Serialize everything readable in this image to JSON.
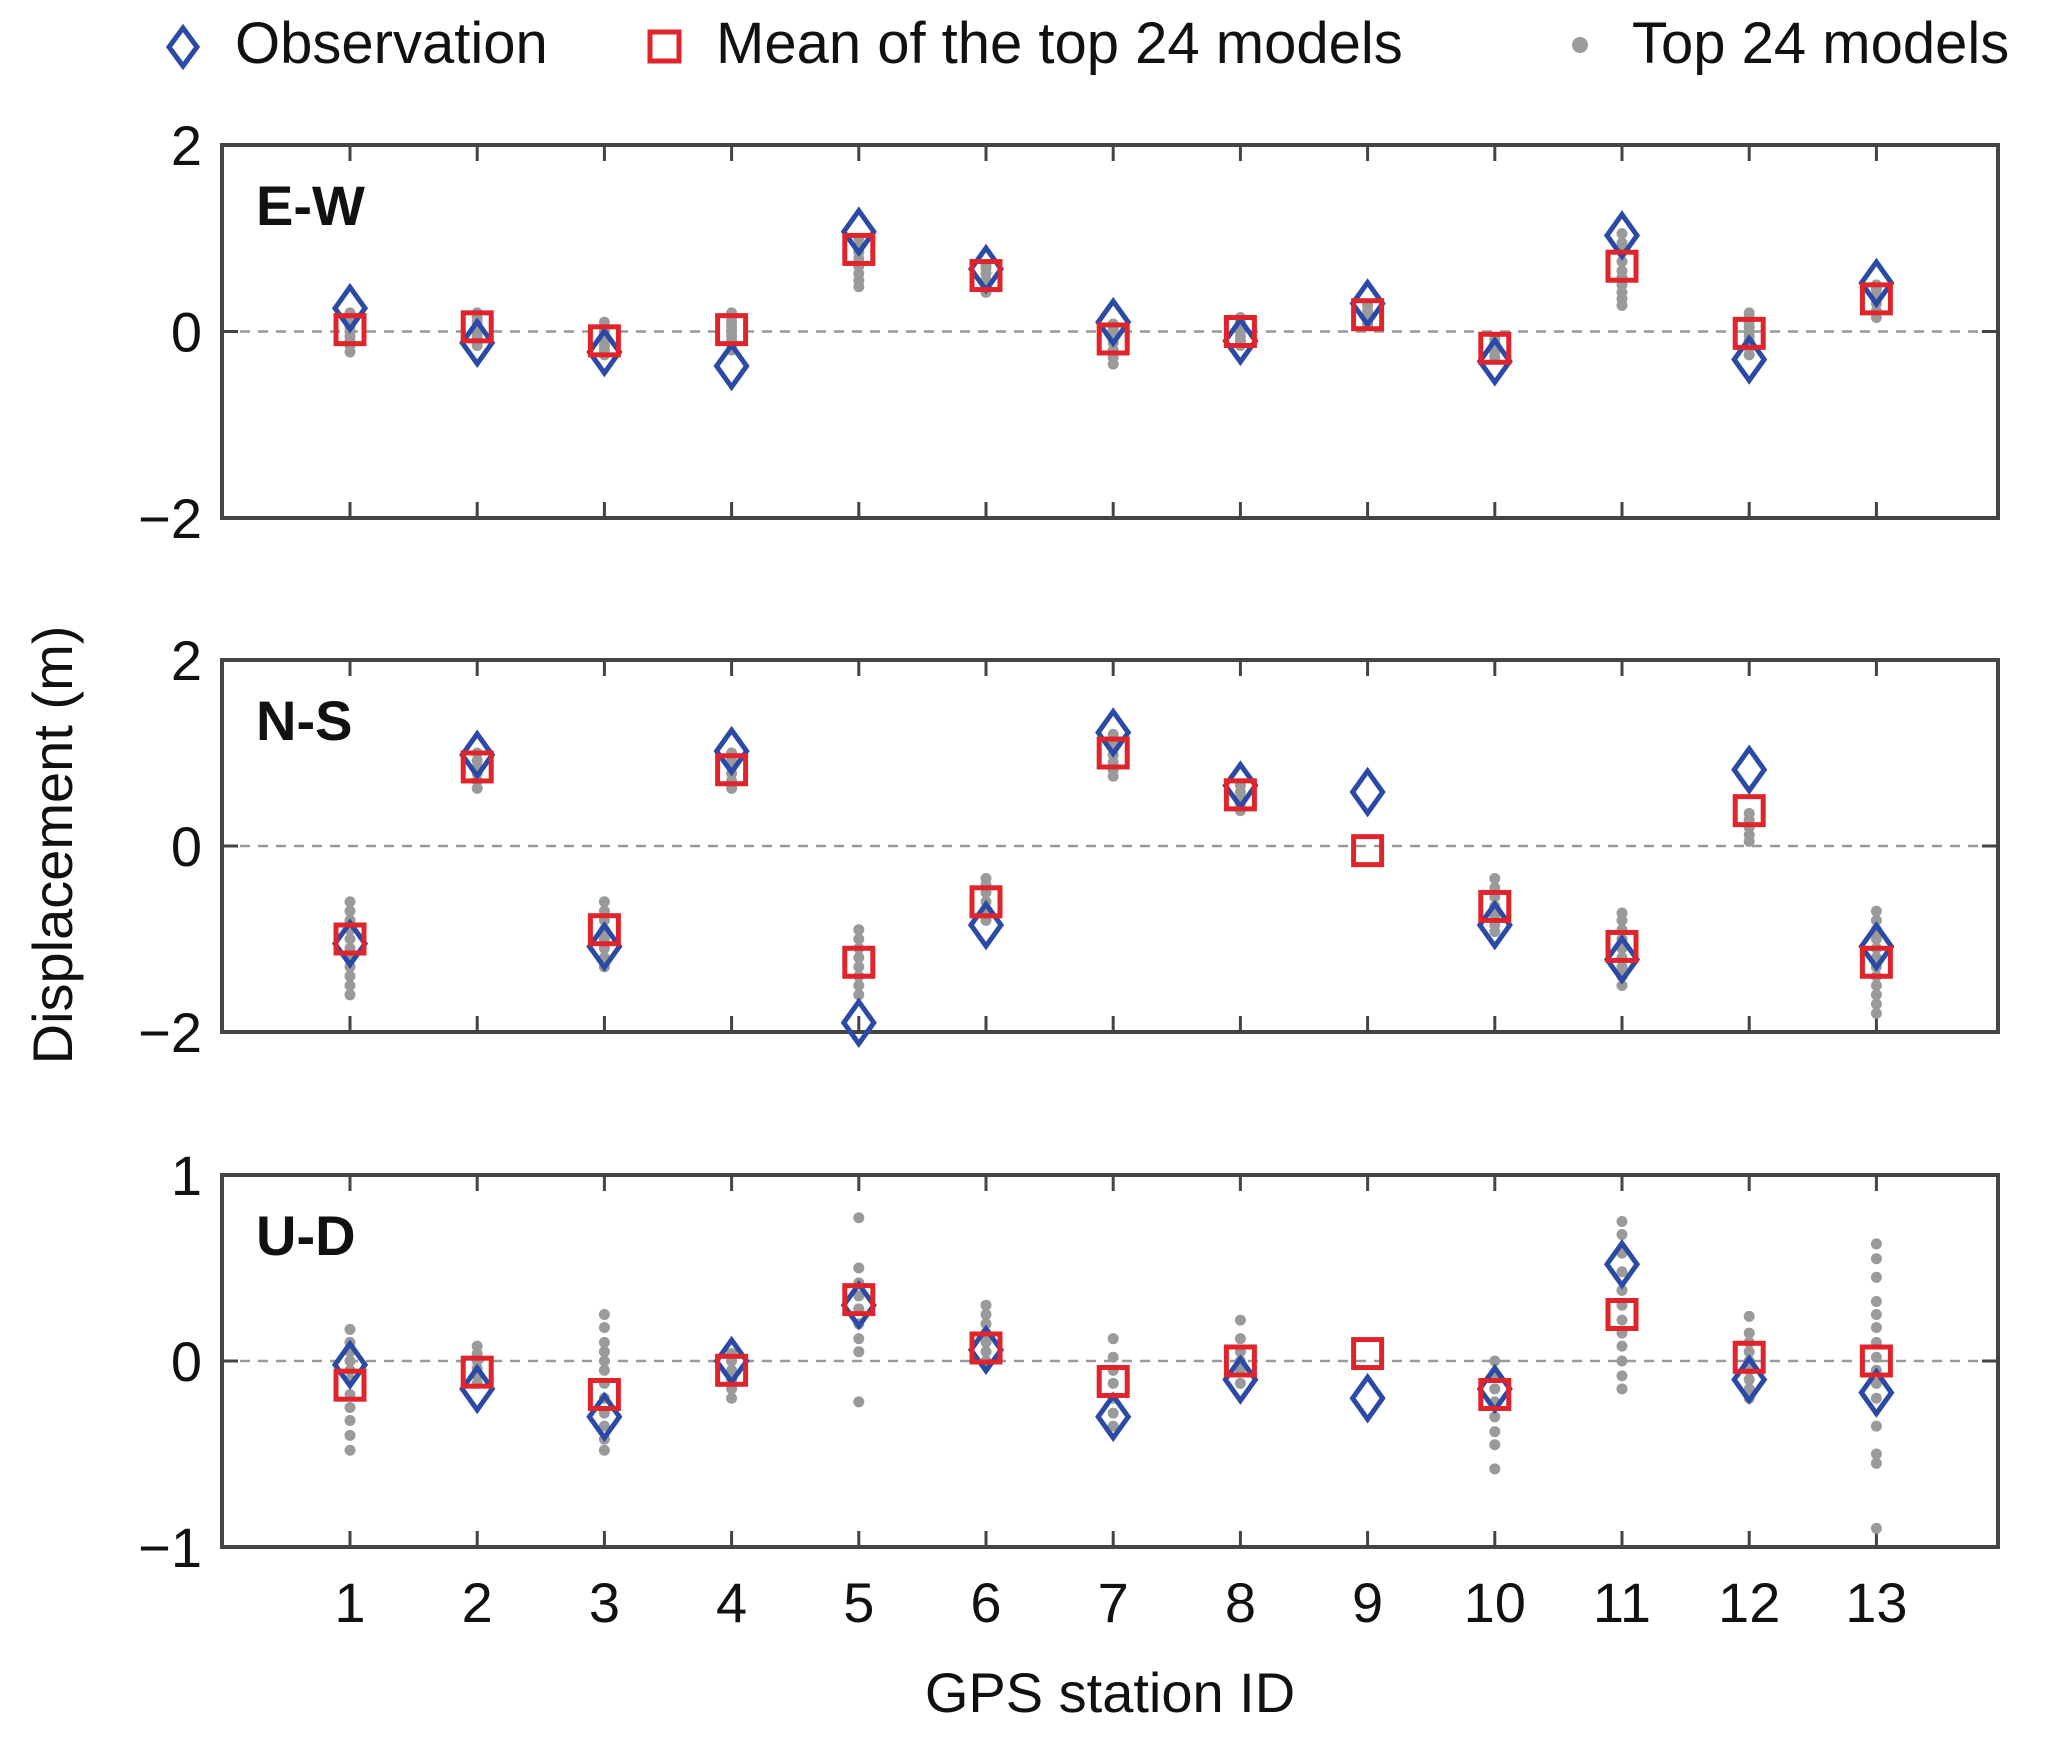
{
  "chart_data": {
    "type": "scatter",
    "xlabel": "GPS station ID",
    "ylabel": "Displacement (m)",
    "categories": [
      "1",
      "2",
      "3",
      "4",
      "5",
      "6",
      "7",
      "8",
      "9",
      "10",
      "11",
      "12",
      "13"
    ],
    "legend": {
      "placement": "top",
      "entries": [
        {
          "key": "observation",
          "label": "Observation"
        },
        {
          "key": "mean",
          "label": "Mean of the top 24 models"
        },
        {
          "key": "models",
          "label": "Top 24 models"
        }
      ]
    },
    "colors": {
      "observation": "#2b4aa6",
      "mean": "#e0242b",
      "models": "#9a9a9a",
      "zero_line": "#999999",
      "axes": "#444444"
    },
    "panels": [
      {
        "label": "E-W",
        "ylim": [
          -2,
          2
        ],
        "yticks": [
          -2,
          0,
          2
        ],
        "ytick_labels": [
          "−2",
          "0",
          "2"
        ],
        "observation": [
          0.25,
          -0.12,
          -0.22,
          -0.37,
          1.07,
          0.67,
          0.1,
          -0.1,
          0.3,
          -0.32,
          1.03,
          -0.3,
          0.52
        ],
        "mean": [
          0.02,
          0.05,
          -0.1,
          0.02,
          0.88,
          0.6,
          -0.08,
          0.0,
          0.18,
          -0.18,
          0.7,
          -0.02,
          0.35
        ],
        "models": [
          [
            -0.22,
            -0.15,
            -0.1,
            -0.05,
            0.0,
            0.05,
            0.1,
            0.15,
            0.2
          ],
          [
            -0.15,
            -0.1,
            -0.05,
            0.0,
            0.05,
            0.1,
            0.15,
            0.2
          ],
          [
            -0.25,
            -0.2,
            -0.15,
            -0.1,
            -0.05,
            0.0,
            0.05,
            0.1
          ],
          [
            -0.2,
            -0.15,
            -0.1,
            -0.05,
            0.0,
            0.05,
            0.1,
            0.15,
            0.2
          ],
          [
            0.48,
            0.55,
            0.62,
            0.7,
            0.78,
            0.85,
            0.92,
            1.0
          ],
          [
            0.42,
            0.48,
            0.55,
            0.62,
            0.68,
            0.72
          ],
          [
            -0.35,
            -0.28,
            -0.2,
            -0.12,
            -0.05,
            0.02,
            0.08
          ],
          [
            -0.15,
            -0.1,
            -0.05,
            0.0,
            0.05,
            0.1,
            0.15
          ],
          [
            0.08,
            0.12,
            0.18,
            0.22,
            0.28
          ],
          [
            -0.28,
            -0.22,
            -0.18,
            -0.12,
            -0.08
          ],
          [
            0.28,
            0.35,
            0.42,
            0.5,
            0.58,
            0.65,
            0.75,
            0.85,
            0.95,
            1.05
          ],
          [
            -0.25,
            -0.18,
            -0.1,
            -0.05,
            0.0,
            0.05,
            0.1,
            0.15,
            0.2
          ],
          [
            0.15,
            0.22,
            0.3,
            0.38,
            0.45,
            0.5
          ]
        ]
      },
      {
        "label": "N-S",
        "ylim": [
          -2,
          2
        ],
        "yticks": [
          -2,
          0,
          2
        ],
        "ytick_labels": [
          "−2",
          "0",
          "2"
        ],
        "observation": [
          -1.05,
          0.98,
          -1.08,
          1.02,
          -1.9,
          -0.85,
          1.22,
          0.65,
          0.58,
          -0.85,
          -1.22,
          0.82,
          -1.08
        ],
        "mean": [
          -1.0,
          0.85,
          -0.9,
          0.82,
          -1.25,
          -0.6,
          1.0,
          0.55,
          -0.05,
          -0.65,
          -1.08,
          0.38,
          -1.25
        ],
        "models": [
          [
            -1.6,
            -1.5,
            -1.4,
            -1.3,
            -1.2,
            -1.1,
            -1.0,
            -0.9,
            -0.8,
            -0.7,
            -0.6
          ],
          [
            0.62,
            0.7,
            0.78,
            0.85,
            0.92,
            1.0
          ],
          [
            -1.3,
            -1.2,
            -1.1,
            -1.0,
            -0.9,
            -0.8,
            -0.7,
            -0.6
          ],
          [
            0.62,
            0.7,
            0.78,
            0.85,
            0.92,
            1.0
          ],
          [
            -1.6,
            -1.5,
            -1.4,
            -1.3,
            -1.2,
            -1.1,
            -1.0,
            -0.9
          ],
          [
            -0.8,
            -0.7,
            -0.6,
            -0.5,
            -0.42,
            -0.35
          ],
          [
            0.75,
            0.82,
            0.9,
            0.98,
            1.05,
            1.12,
            1.2
          ],
          [
            0.38,
            0.45,
            0.52,
            0.58,
            0.65
          ],
          [],
          [
            -0.92,
            -0.85,
            -0.75,
            -0.65,
            -0.55,
            -0.45,
            -0.35
          ],
          [
            -1.5,
            -1.4,
            -1.3,
            -1.2,
            -1.1,
            -1.0,
            -0.9,
            -0.8,
            -0.72
          ],
          [
            0.05,
            0.12,
            0.2,
            0.28,
            0.35
          ],
          [
            -1.8,
            -1.7,
            -1.6,
            -1.5,
            -1.4,
            -1.3,
            -1.2,
            -1.1,
            -1.0,
            -0.9,
            -0.8,
            -0.7
          ]
        ]
      },
      {
        "label": "U-D",
        "ylim": [
          -1,
          1
        ],
        "yticks": [
          -1,
          0,
          1
        ],
        "ytick_labels": [
          "−1",
          "0",
          "1"
        ],
        "observation": [
          -0.02,
          -0.15,
          -0.3,
          0.0,
          0.3,
          0.06,
          -0.3,
          -0.1,
          -0.2,
          -0.15,
          0.52,
          -0.1,
          -0.17
        ],
        "mean": [
          -0.13,
          -0.06,
          -0.18,
          -0.05,
          0.33,
          0.07,
          -0.11,
          0.0,
          0.04,
          -0.18,
          0.25,
          0.02,
          0.0
        ],
        "models": [
          [
            -0.48,
            -0.4,
            -0.32,
            -0.25,
            -0.18,
            -0.1,
            -0.05,
            0.0,
            0.05,
            0.1,
            0.17
          ],
          [
            -0.12,
            -0.08,
            -0.04,
            0.0,
            0.04,
            0.08
          ],
          [
            -0.48,
            -0.42,
            -0.35,
            -0.28,
            -0.2,
            -0.12,
            -0.05,
            0.0,
            0.05,
            0.1,
            0.18,
            0.25
          ],
          [
            -0.2,
            -0.15,
            -0.1,
            -0.05,
            0.0,
            0.04
          ],
          [
            -0.22,
            0.05,
            0.12,
            0.2,
            0.28,
            0.35,
            0.42,
            0.5,
            0.77
          ],
          [
            0.0,
            0.05,
            0.1,
            0.15,
            0.2,
            0.25,
            0.3
          ],
          [
            -0.35,
            -0.28,
            -0.2,
            -0.12,
            -0.05,
            0.02,
            0.12
          ],
          [
            -0.12,
            -0.05,
            0.0,
            0.05,
            0.12,
            0.22
          ],
          [],
          [
            -0.58,
            -0.45,
            -0.38,
            -0.3,
            -0.22,
            -0.15,
            -0.08,
            0.0
          ],
          [
            -0.15,
            -0.08,
            0.0,
            0.08,
            0.15,
            0.22,
            0.3,
            0.38,
            0.48,
            0.58,
            0.68,
            0.75
          ],
          [
            -0.2,
            -0.15,
            -0.1,
            -0.05,
            0.0,
            0.05,
            0.1,
            0.15,
            0.24
          ],
          [
            -0.9,
            -0.55,
            -0.5,
            -0.35,
            -0.2,
            -0.12,
            -0.05,
            0.02,
            0.1,
            0.18,
            0.25,
            0.32,
            0.45,
            0.55,
            0.63
          ]
        ]
      }
    ]
  }
}
